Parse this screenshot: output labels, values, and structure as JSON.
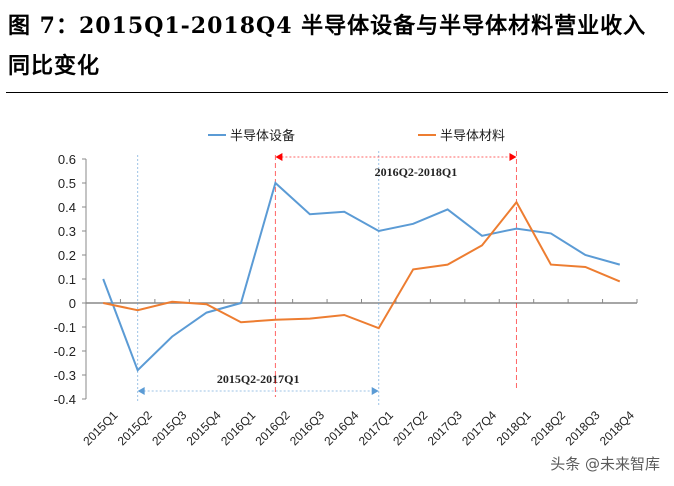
{
  "title": "图 7：2015Q1-2018Q4 半导体设备与半导体材料营业收入同比变化",
  "watermark": "头条 @未来智库",
  "chart_data": {
    "type": "line",
    "title": "图 7：2015Q1-2018Q4 半导体设备与半导体材料营业收入同比变化",
    "categories": [
      "2015Q1",
      "2015Q2",
      "2015Q3",
      "2015Q4",
      "2016Q1",
      "2016Q2",
      "2016Q3",
      "2016Q4",
      "2017Q1",
      "2017Q2",
      "2017Q3",
      "2017Q4",
      "2018Q1",
      "2018Q2",
      "2018Q3",
      "2018Q4"
    ],
    "series": [
      {
        "name": "半导体设备",
        "color": "#5b9bd5",
        "values": [
          0.1,
          -0.28,
          -0.14,
          -0.04,
          0.0,
          0.5,
          0.37,
          0.38,
          0.3,
          0.33,
          0.39,
          0.28,
          0.31,
          0.29,
          0.2,
          0.16
        ]
      },
      {
        "name": "半导体材料",
        "color": "#ed7d31",
        "values": [
          0.0,
          -0.03,
          0.005,
          -0.005,
          -0.08,
          -0.07,
          -0.065,
          -0.05,
          -0.105,
          0.14,
          0.16,
          0.24,
          0.42,
          0.16,
          0.15,
          0.09
        ]
      }
    ],
    "ylim": [
      -0.4,
      0.6
    ],
    "yticks": [
      "0.6",
      "0.5",
      "0.4",
      "0.3",
      "0.2",
      "0.1",
      "0",
      "-0.1",
      "-0.2",
      "-0.3",
      "-0.4"
    ],
    "legend": "top",
    "annotations": [
      {
        "text": "2015Q2-2017Q1",
        "from": "2015Q2",
        "to": "2017Q1",
        "color": "#5b9bd5"
      },
      {
        "text": "2016Q2-2018Q1",
        "from": "2016Q2",
        "to": "2018Q1",
        "color": "#ff0000"
      }
    ]
  }
}
